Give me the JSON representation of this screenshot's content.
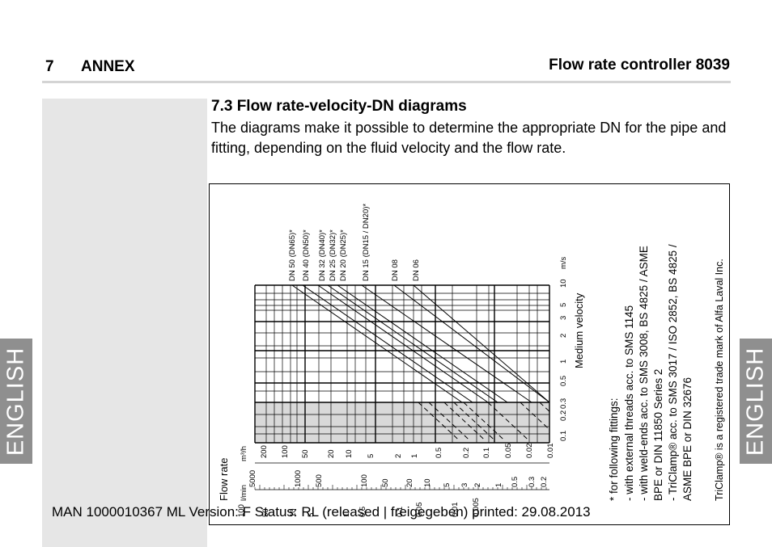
{
  "header": {
    "chapter_number": "7",
    "chapter_title": "ANNEX",
    "document_title": "Flow rate controller 8039"
  },
  "section": {
    "title": "7.3  Flow rate-velocity-DN diagrams",
    "text": "The diagrams make it possible to determine the appropriate DN for the pipe and fitting, depending on the fluid velocity and the flow rate."
  },
  "language_tab": "ENGLISH",
  "diagram": {
    "dn_labels": [
      "DN 50 (DN65)*",
      "DN 40 (DN50)*",
      "DN 32 (DN40)*",
      "DN 25 (DN32)*",
      "DN 20 (DN25)*",
      "DN 15 (DN15 / DN20)*",
      "DN 08",
      "DN 06"
    ],
    "velocity_ticks": [
      "0.1",
      "0.2",
      "0.3",
      "0.5",
      "1",
      "2",
      "3",
      "5",
      "10"
    ],
    "velocity_unit": "m/s",
    "velocity_title": "Medium velocity",
    "m3h_ticks": [
      "200",
      "100",
      "50",
      "20",
      "10",
      "5",
      "2",
      "1",
      "0.5",
      "0.2",
      "0.1",
      "0.05",
      "0.02",
      "0.01"
    ],
    "m3h_unit": "m³/h",
    "lmin_ticks": [
      "5000",
      "1000",
      "500",
      "100",
      "50",
      "20",
      "10",
      "5",
      "3",
      "2",
      "1",
      "0.5",
      "0.3",
      "0.2"
    ],
    "lmin_unit": "l/min",
    "lower_ticks": [
      "100",
      "50",
      "10",
      "5",
      "1",
      "0.5",
      "0.1",
      "0.05",
      "0.01",
      "0.005"
    ],
    "flow_rate_title": "Flow rate",
    "notes": [
      "* for following fittings:",
      "-  with external threads acc. to SMS 1145",
      "-  with weld-ends acc. to SMS 3008, BS 4825 / ASME",
      "BPE or DIN 11850 Series 2",
      "-  TriClamp® acc. to SMS 3017 / ISO 2852, BS 4825 /",
      "ASME BPE or DIN 32676"
    ],
    "trademark": "TriClamp® is a registered trade mark of Alfa Laval Inc."
  },
  "footer": "MAN  1000010367  ML  Version: F Status: RL (released | freigegeben)  printed: 29.08.2013"
}
